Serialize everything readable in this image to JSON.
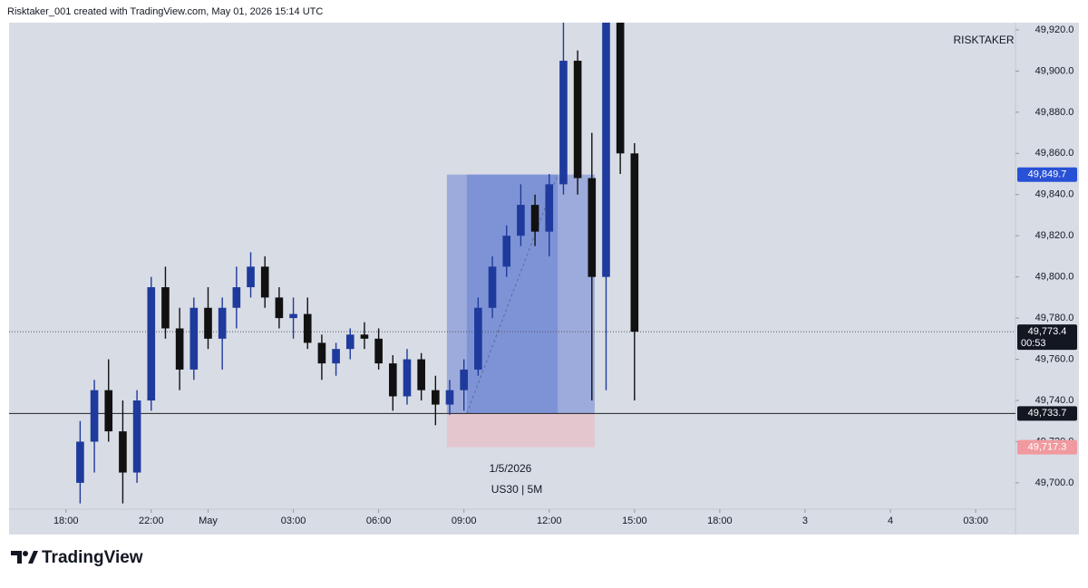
{
  "header": "Risktaker_001 created with TradingView.com, May 01, 2026 15:14 UTC",
  "logo": "TradingView",
  "chart_data": {
    "type": "candlestick",
    "watermark": "RISKTAKER",
    "date_label": "1/5/2026",
    "symbol_label": "US30 | 5M",
    "up_color": "#1e3a9c",
    "down_color": "#111111",
    "xlim": [
      -2,
      33.4
    ],
    "ylim": [
      49687.2,
      49923.5
    ],
    "xticks": [
      {
        "value": 0,
        "label": "18:00"
      },
      {
        "value": 3,
        "label": "22:00"
      },
      {
        "value": 5,
        "label": "May"
      },
      {
        "value": 8,
        "label": "03:00"
      },
      {
        "value": 11,
        "label": "06:00"
      },
      {
        "value": 14,
        "label": "09:00"
      },
      {
        "value": 17,
        "label": "12:00"
      },
      {
        "value": 20,
        "label": "15:00"
      },
      {
        "value": 23,
        "label": "18:00"
      },
      {
        "value": 26,
        "label": "3"
      },
      {
        "value": 29,
        "label": "4"
      },
      {
        "value": 32,
        "label": "03:00"
      }
    ],
    "yticks": [
      {
        "value": 49700,
        "label": "49,700.0"
      },
      {
        "value": 49720,
        "label": "49,720.0"
      },
      {
        "value": 49740,
        "label": "49,740.0"
      },
      {
        "value": 49760,
        "label": "49,760.0"
      },
      {
        "value": 49780,
        "label": "49,780.0"
      },
      {
        "value": 49800,
        "label": "49,800.0"
      },
      {
        "value": 49820,
        "label": "49,820.0"
      },
      {
        "value": 49840,
        "label": "49,840.0"
      },
      {
        "value": 49860,
        "label": "49,860.0"
      },
      {
        "value": 49880,
        "label": "49,880.0"
      },
      {
        "value": 49900,
        "label": "49,900.0"
      },
      {
        "value": 49920,
        "label": "49,920.0"
      }
    ],
    "candles": {
      "x": [
        0.5,
        1,
        1.5,
        2,
        2.5,
        3,
        3.5,
        4,
        4.5,
        5,
        5.5,
        6,
        6.5,
        7,
        7.5,
        8,
        8.5,
        9,
        9.5,
        10,
        10.5,
        11,
        11.5,
        12,
        12.5,
        13,
        13.5,
        14,
        14.5,
        15,
        15.5,
        16,
        16.5,
        17,
        17.5,
        18,
        18.5,
        19,
        19.5,
        20
      ],
      "open": [
        49700,
        49720,
        49745,
        49725,
        49705,
        49740,
        49795,
        49775,
        49755,
        49785,
        49770,
        49785,
        49795,
        49805,
        49790,
        49780,
        49782,
        49768,
        49758,
        49765,
        49772,
        49770,
        49758,
        49742,
        49760,
        49745,
        49738,
        49745,
        49755,
        49785,
        49805,
        49820,
        49835,
        49822,
        49845,
        49905,
        49848,
        49800,
        49925,
        49860
      ],
      "high": [
        49730,
        49750,
        49760,
        49740,
        49745,
        49800,
        49805,
        49785,
        49790,
        49795,
        49790,
        49805,
        49812,
        49810,
        49795,
        49790,
        49790,
        49772,
        49768,
        49775,
        49778,
        49775,
        49762,
        49765,
        49763,
        49752,
        49750,
        49760,
        49790,
        49810,
        49825,
        49845,
        49840,
        49850,
        49932,
        49910,
        49870,
        49932,
        49930,
        49865
      ],
      "low": [
        49690,
        49705,
        49720,
        49690,
        49700,
        49735,
        49770,
        49745,
        49750,
        49765,
        49755,
        49775,
        49790,
        49785,
        49775,
        49770,
        49765,
        49750,
        49752,
        49760,
        49765,
        49755,
        49735,
        49738,
        49740,
        49728,
        49733,
        49735,
        49752,
        49780,
        49800,
        49815,
        49815,
        49810,
        49840,
        49840,
        49740,
        49745,
        49850,
        49740
      ],
      "close": [
        49720,
        49745,
        49725,
        49705,
        49740,
        49795,
        49775,
        49755,
        49785,
        49770,
        49785,
        49795,
        49805,
        49790,
        49780,
        49782,
        49768,
        49758,
        49765,
        49772,
        49770,
        49758,
        49742,
        49760,
        49745,
        49738,
        49745,
        49755,
        49785,
        49805,
        49820,
        49835,
        49822,
        49845,
        49905,
        49848,
        49800,
        49925,
        49860,
        49773.4
      ]
    },
    "position": {
      "x": [
        13.4,
        18.6
      ],
      "highlight_x": [
        14.1,
        17.3
      ],
      "target": {
        "value": 49849.7,
        "label": "49,849.7"
      },
      "entry": {
        "value": 49733.7,
        "label": "49,733.7"
      },
      "stop": {
        "value": 49717.3,
        "label": "49,717.3"
      }
    },
    "current_price": {
      "value": 49773.4,
      "label": "49,773.4",
      "countdown": "00:53"
    }
  }
}
